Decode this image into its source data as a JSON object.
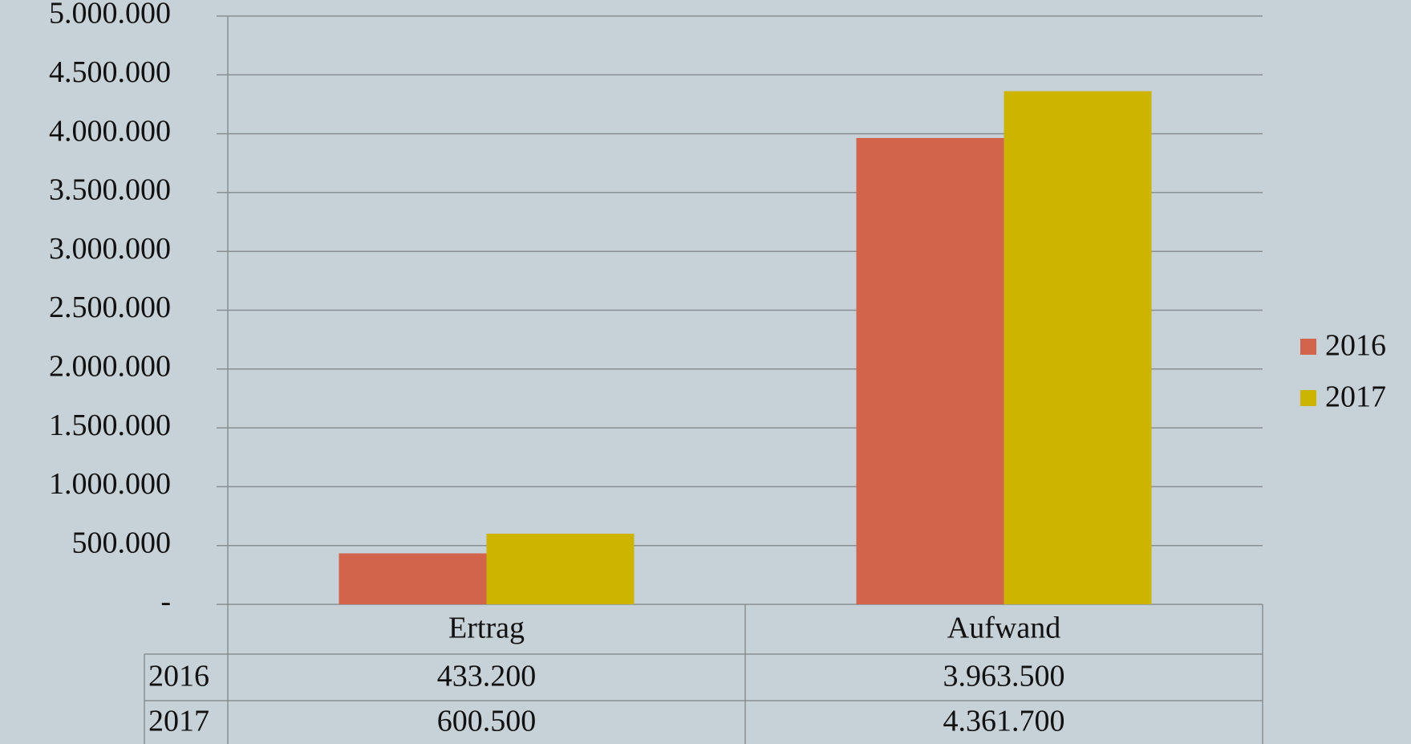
{
  "chart_data": {
    "type": "bar",
    "categories": [
      "Ertrag",
      "Aufwand"
    ],
    "series": [
      {
        "name": "2016",
        "color": "#d1644a",
        "values": [
          433200,
          3963500
        ],
        "value_labels": [
          "433.200",
          "3.963.500"
        ]
      },
      {
        "name": "2017",
        "color": "#ccb400",
        "values": [
          600500,
          4361700
        ],
        "value_labels": [
          "600.500",
          "4.361.700"
        ]
      }
    ],
    "ylim": [
      0,
      5000000
    ],
    "yticks": [
      {
        "value": 0,
        "label": "-"
      },
      {
        "value": 500000,
        "label": "500.000"
      },
      {
        "value": 1000000,
        "label": "1.000.000"
      },
      {
        "value": 1500000,
        "label": "1.500.000"
      },
      {
        "value": 2000000,
        "label": "2.000.000"
      },
      {
        "value": 2500000,
        "label": "2.500.000"
      },
      {
        "value": 3000000,
        "label": "3.000.000"
      },
      {
        "value": 3500000,
        "label": "3.500.000"
      },
      {
        "value": 4000000,
        "label": "4.000.000"
      },
      {
        "value": 4500000,
        "label": "4.500.000"
      },
      {
        "value": 5000000,
        "label": "5.000.000"
      }
    ],
    "grid": true,
    "legend": "right"
  }
}
